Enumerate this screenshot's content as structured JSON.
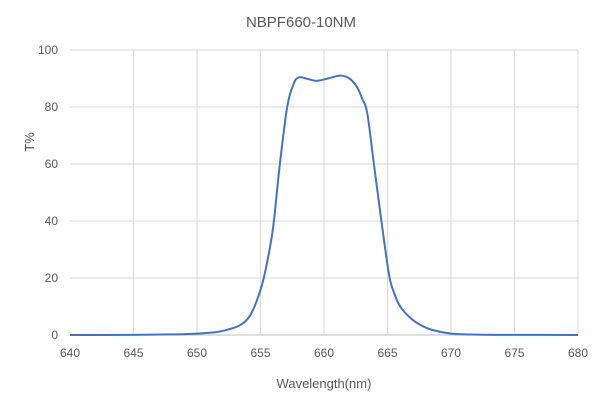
{
  "chart_data": {
    "type": "line",
    "title": "NBPF660-10NM",
    "xlabel": "Wavelength(nm)",
    "ylabel": "T%",
    "xlim": [
      640,
      680
    ],
    "ylim": [
      0,
      100
    ],
    "xticks": [
      640,
      645,
      650,
      655,
      660,
      665,
      670,
      675,
      680
    ],
    "yticks": [
      0,
      20,
      40,
      60,
      80,
      100
    ],
    "grid": true,
    "legend": "none",
    "color": "#4472C4",
    "series": [
      {
        "x": [
          640,
          645,
          648,
          650,
          651.5,
          652.5,
          653.4,
          654.2,
          655,
          655.5,
          656,
          656.5,
          657.1,
          657.6,
          658,
          658.6,
          659.4,
          660.3,
          661.3,
          662,
          662.6,
          663,
          663.4,
          663.9,
          664.4,
          665.1,
          665.5,
          666,
          666.8,
          667.6,
          668.5,
          670,
          672,
          675,
          680
        ],
        "y": [
          0,
          0.05,
          0.2,
          0.5,
          1,
          2,
          3.5,
          7,
          15.8,
          25,
          38,
          59,
          80,
          88,
          90.4,
          90,
          89.2,
          90,
          91,
          90,
          87,
          83,
          78,
          61,
          44,
          21.7,
          15,
          10,
          6,
          3.5,
          1.8,
          0.5,
          0.15,
          0.05,
          0
        ]
      }
    ]
  }
}
